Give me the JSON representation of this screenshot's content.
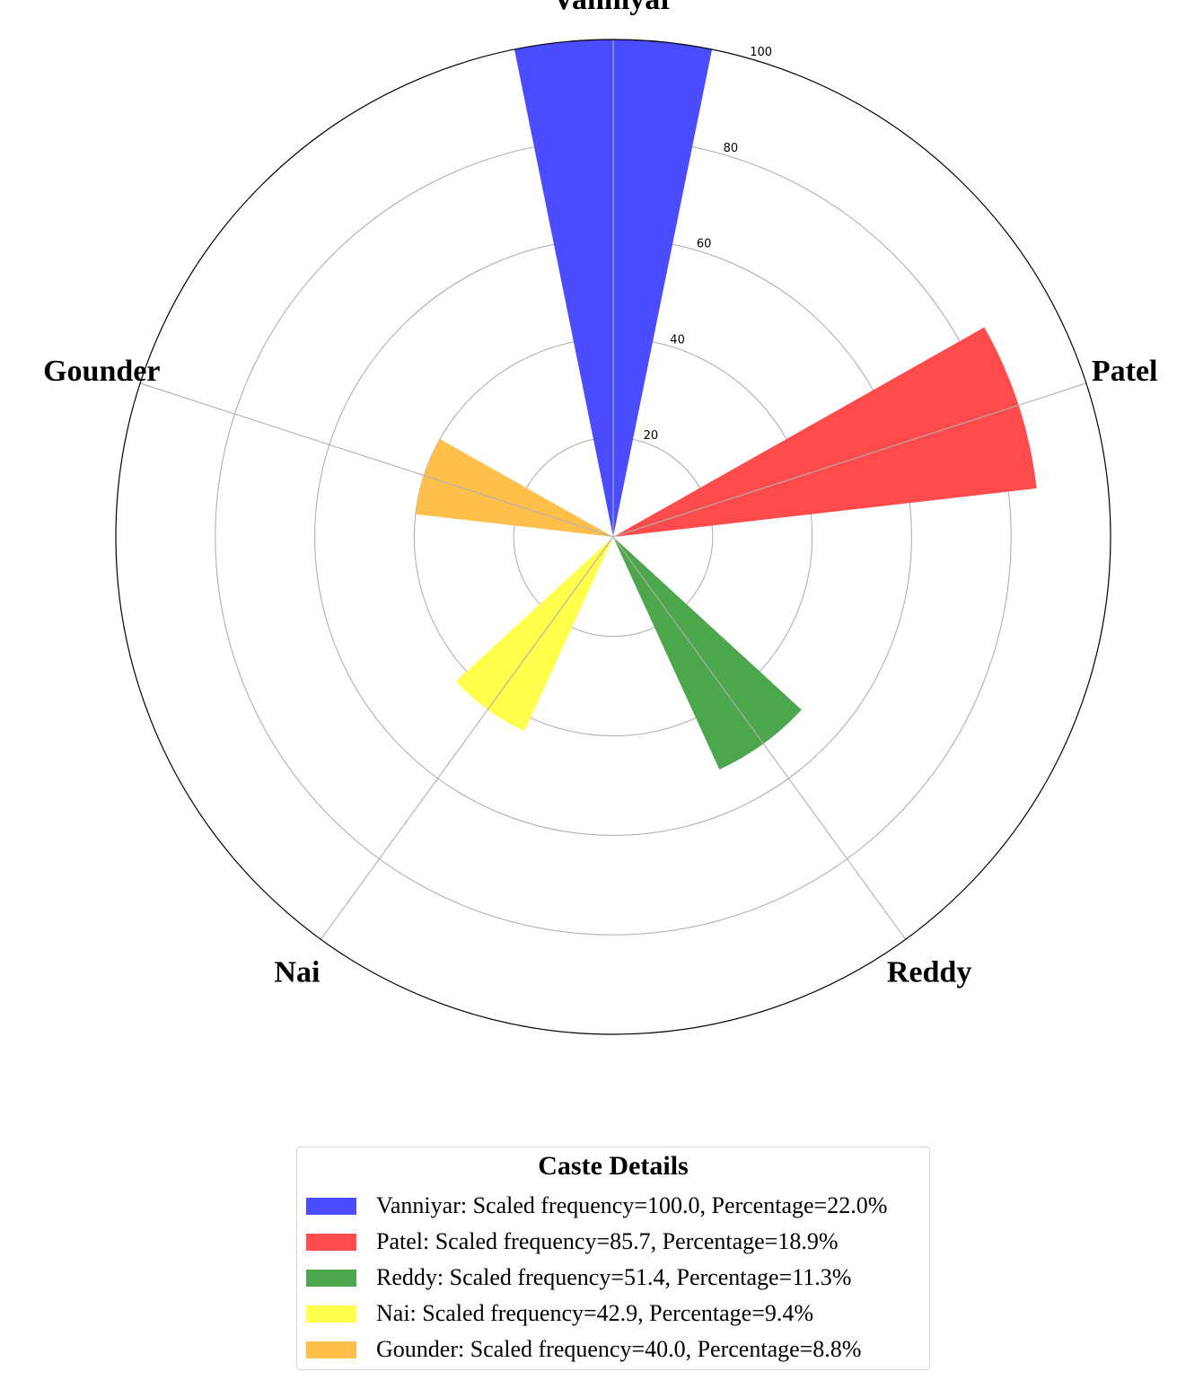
{
  "chart_data": {
    "type": "polar-bar",
    "categories": [
      "Vanniyar",
      "Patel",
      "Reddy",
      "Nai",
      "Gounder"
    ],
    "values": [
      100.0,
      85.7,
      51.4,
      42.9,
      40.0
    ],
    "percentages": [
      22.0,
      18.9,
      11.3,
      9.4,
      8.8
    ],
    "colors": [
      "#4b4bff",
      "#ff4b4b",
      "#4ca64c",
      "#ffff4b",
      "#ffbf4b"
    ],
    "rlim": [
      0,
      100
    ],
    "r_ticks": [
      "20",
      "40",
      "60",
      "80",
      "100"
    ],
    "grid": true,
    "legend": {
      "title": "Caste Details",
      "placement": "bottom-center",
      "entries": [
        "Vanniyar: Scaled frequency=100.0, Percentage=22.0%",
        "Patel: Scaled frequency=85.7, Percentage=18.9%",
        "Reddy: Scaled frequency=51.4, Percentage=11.3%",
        "Nai: Scaled frequency=42.9, Percentage=9.4%",
        "Gounder: Scaled frequency=40.0, Percentage=8.8%"
      ]
    }
  }
}
